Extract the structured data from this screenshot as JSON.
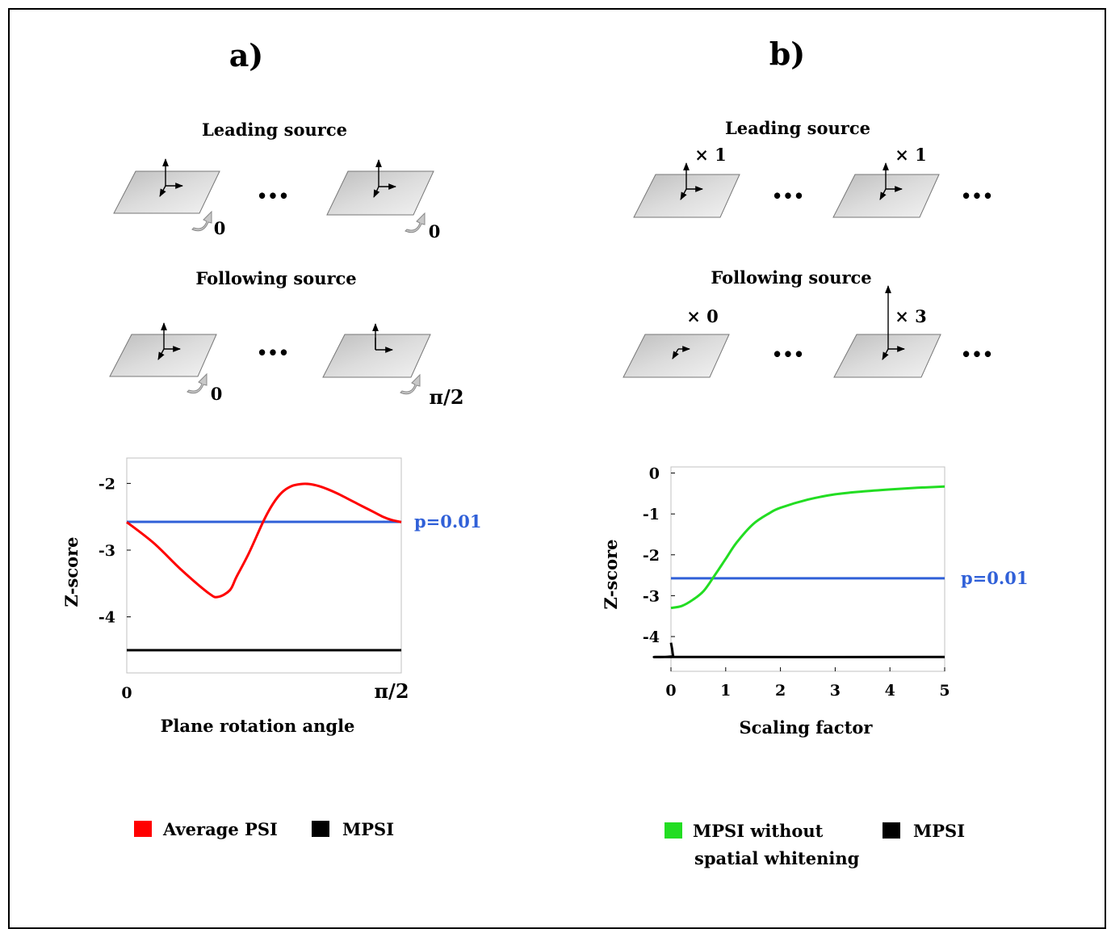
{
  "panel_a": {
    "label": "a)",
    "leading_header": "Leading source",
    "following_header": "Following source",
    "ellipsis": "•••",
    "leading_angles": [
      "0",
      "0"
    ],
    "following_angles": [
      "0",
      "π/2"
    ]
  },
  "panel_b": {
    "label": "b)",
    "leading_header": "Leading source",
    "following_header": "Following source",
    "ellipsis": "•••",
    "leading_scales": [
      "× 1",
      "× 1"
    ],
    "following_scales": [
      "× 0",
      "× 3"
    ]
  },
  "chart_data": [
    {
      "type": "line",
      "xlabel": "Plane rotation angle",
      "ylabel": "Z-score",
      "x_tick_labels": [
        "0",
        "π/2"
      ],
      "xlim": [
        0,
        1.5708
      ],
      "ylim": [
        -4.84,
        -1.62
      ],
      "y_ticks": [
        -2,
        -3,
        -4
      ],
      "grid": false,
      "series": [
        {
          "name": "Average PSI",
          "color": "#ff0000",
          "x": [
            0,
            0.157,
            0.314,
            0.471,
            0.524,
            0.59,
            0.628,
            0.698,
            0.785,
            0.838,
            0.89,
            0.943,
            0.995,
            1.047,
            1.099,
            1.152,
            1.204,
            1.257,
            1.309,
            1.361,
            1.414,
            1.466,
            1.518,
            1.5708
          ],
          "y": [
            -2.58,
            -2.9,
            -3.3,
            -3.65,
            -3.7,
            -3.6,
            -3.4,
            -3.05,
            -2.55,
            -2.3,
            -2.13,
            -2.04,
            -2.01,
            -2.01,
            -2.04,
            -2.09,
            -2.15,
            -2.22,
            -2.29,
            -2.36,
            -2.43,
            -2.5,
            -2.55,
            -2.58
          ]
        },
        {
          "name": "MPSI",
          "color": "#000000",
          "x": [
            0,
            1.5708
          ],
          "y": [
            -4.5,
            -4.5
          ]
        }
      ],
      "reference_line": {
        "y": -2.576,
        "label": "p=0.01",
        "color": "#3060d8"
      },
      "legend": {
        "placement": "bottom",
        "entries": [
          "Average PSI",
          "MPSI"
        ]
      }
    },
    {
      "type": "line",
      "xlabel": "Scaling factor",
      "ylabel": "Z-score",
      "xlim": [
        0,
        5
      ],
      "ylim": [
        -4.85,
        0.15
      ],
      "x_ticks": [
        0,
        1,
        2,
        3,
        4,
        5
      ],
      "y_ticks": [
        0,
        -1,
        -2,
        -3,
        -4
      ],
      "grid": false,
      "series": [
        {
          "name": "MPSI without spatial whitening",
          "color": "#22dd22",
          "x": [
            0,
            0.2,
            0.4,
            0.6,
            0.8,
            1.0,
            1.2,
            1.5,
            1.8,
            2.0,
            2.5,
            3.0,
            3.5,
            4.0,
            4.5,
            5.0
          ],
          "y": [
            -3.3,
            -3.25,
            -3.1,
            -2.88,
            -2.5,
            -2.1,
            -1.7,
            -1.25,
            -0.98,
            -0.85,
            -0.65,
            -0.52,
            -0.45,
            -0.4,
            -0.36,
            -0.33
          ]
        },
        {
          "name": "MPSI",
          "color": "#000000",
          "x": [
            0,
            0.02,
            0.04,
            0.06,
            5.0
          ],
          "y": [
            -4.15,
            -4.3,
            -4.48,
            -4.5,
            -4.5
          ]
        }
      ],
      "reference_line": {
        "y": -2.576,
        "label": "p=0.01",
        "color": "#3060d8"
      },
      "legend": {
        "placement": "bottom",
        "entries": [
          "MPSI without",
          "spatial whitening",
          "MPSI"
        ]
      }
    }
  ]
}
